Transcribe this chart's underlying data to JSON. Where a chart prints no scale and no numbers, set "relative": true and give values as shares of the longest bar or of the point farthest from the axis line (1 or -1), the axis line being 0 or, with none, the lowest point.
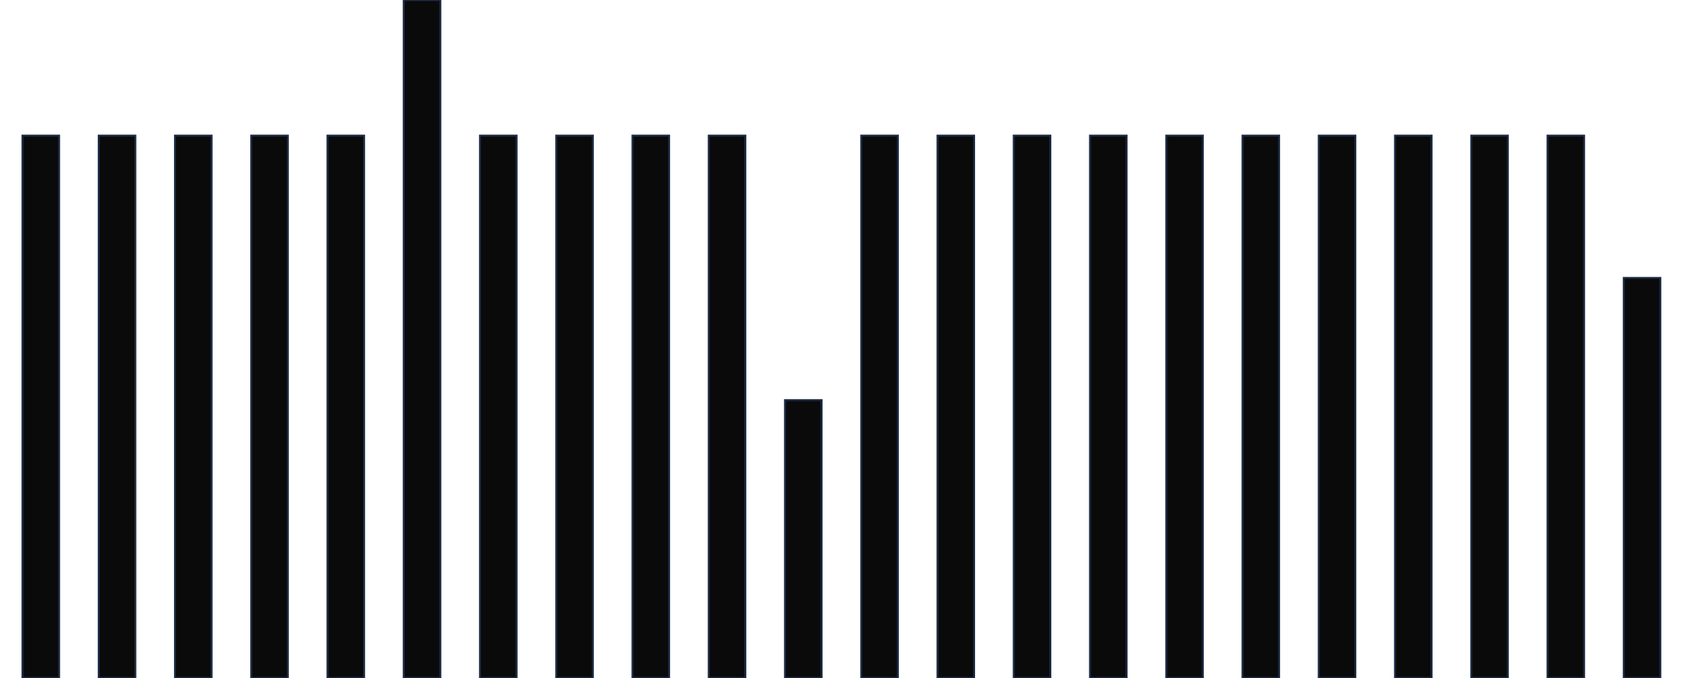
{
  "chart_data": {
    "type": "bar",
    "relative": true,
    "categories": [
      null,
      null,
      null,
      null,
      null,
      null,
      null,
      null,
      null,
      null,
      null,
      null,
      null,
      null,
      null,
      null,
      null,
      null,
      null,
      null,
      null,
      null
    ],
    "values": [
      0.8,
      0.8,
      0.8,
      0.8,
      0.8,
      1,
      0.8,
      0.8,
      0.8,
      0.8,
      0.41,
      0.8,
      0.8,
      0.8,
      0.8,
      0.8,
      0.8,
      0.8,
      0.8,
      0.8,
      0.8,
      0.59
    ],
    "color": "#0a0a0a",
    "grid": false,
    "legend": false
  }
}
